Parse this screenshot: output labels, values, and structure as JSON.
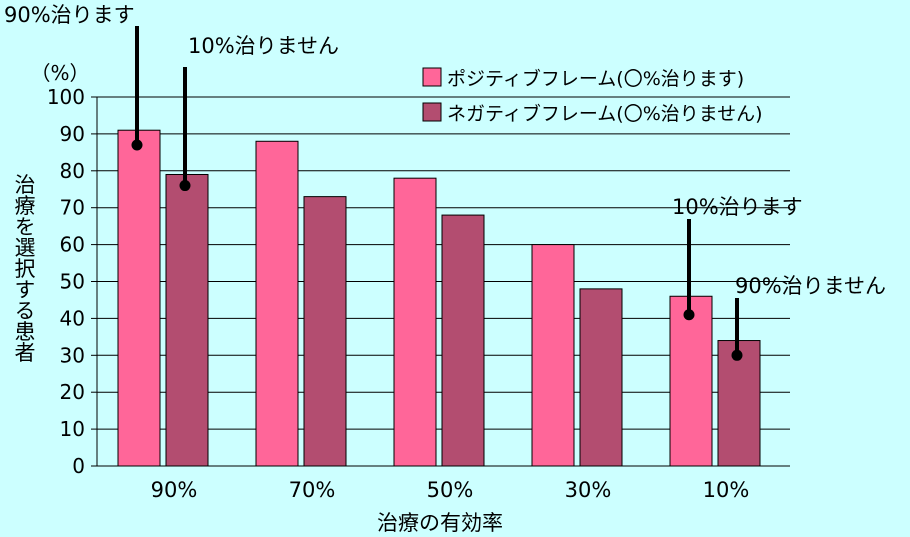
{
  "chart_data": {
    "type": "bar",
    "title": "",
    "xlabel": "治療の有効率",
    "ylabel": "治療を選択する患者",
    "yunit": "（%）",
    "categories": [
      "90%",
      "70%",
      "50%",
      "30%",
      "10%"
    ],
    "ylim": [
      0,
      100
    ],
    "yticks": [
      0,
      10,
      20,
      30,
      40,
      50,
      60,
      70,
      80,
      90,
      100
    ],
    "grid": true,
    "legend": "top-right",
    "series": [
      {
        "name": "ポジティブフレーム(〇%治ります)",
        "color": "#ff6699",
        "values": [
          91,
          88,
          78,
          60,
          46
        ]
      },
      {
        "name": "ネガティブフレーム(〇%治りません)",
        "color": "#b34d70",
        "values": [
          79,
          73,
          68,
          48,
          34
        ]
      }
    ],
    "annotations": [
      {
        "text": "90%治ります",
        "category": "90%",
        "series": 0,
        "value": 87
      },
      {
        "text": "10%治りません",
        "category": "90%",
        "series": 1,
        "value": 76
      },
      {
        "text": "10%治ります",
        "category": "10%",
        "series": 0,
        "value": 41
      },
      {
        "text": "90%治りません",
        "category": "10%",
        "series": 1,
        "value": 30
      }
    ]
  }
}
